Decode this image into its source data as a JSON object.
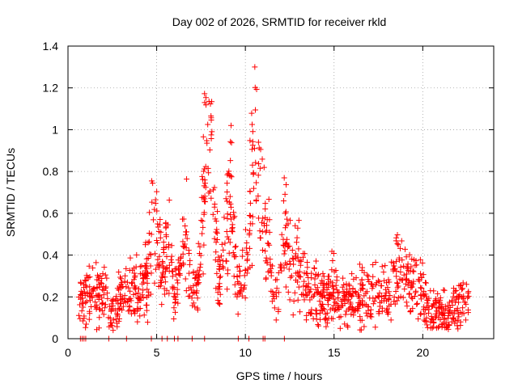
{
  "chart_data": {
    "type": "scatter",
    "title": "Day 002 of 2026, SRMTID for receiver rkld",
    "xlabel": "GPS time / hours",
    "ylabel": "SRMTID / TECUs",
    "xlim": [
      0,
      24
    ],
    "ylim": [
      0,
      1.4
    ],
    "x_ticks": [
      "0",
      "5",
      "10",
      "15",
      "20"
    ],
    "y_ticks": [
      "0",
      "0.2",
      "0.4",
      "0.6",
      "0.8",
      "1",
      "1.2",
      "1.4"
    ],
    "grid": true,
    "marker": "+",
    "series": [
      {
        "name": "SRMTID",
        "color": "#ff0000",
        "profile": [
          [
            0.6,
            0.17
          ],
          [
            1.0,
            0.18
          ],
          [
            1.3,
            0.22
          ],
          [
            1.6,
            0.2
          ],
          [
            2.0,
            0.24
          ],
          [
            2.3,
            0.1
          ],
          [
            2.7,
            0.16
          ],
          [
            3.0,
            0.2
          ],
          [
            3.5,
            0.23
          ],
          [
            4.0,
            0.25
          ],
          [
            4.5,
            0.3
          ],
          [
            4.8,
            0.6
          ],
          [
            5.0,
            0.5
          ],
          [
            5.3,
            0.3
          ],
          [
            5.7,
            0.45
          ],
          [
            6.0,
            0.2
          ],
          [
            6.4,
            0.4
          ],
          [
            6.7,
            0.5
          ],
          [
            7.0,
            0.25
          ],
          [
            7.3,
            0.2
          ],
          [
            7.7,
            0.8
          ],
          [
            8.0,
            1.0
          ],
          [
            8.3,
            0.5
          ],
          [
            8.6,
            0.25
          ],
          [
            8.9,
            0.5
          ],
          [
            9.2,
            0.75
          ],
          [
            9.5,
            0.3
          ],
          [
            9.8,
            0.2
          ],
          [
            10.2,
            0.55
          ],
          [
            10.5,
            1.0
          ],
          [
            10.8,
            0.7
          ],
          [
            11.2,
            0.5
          ],
          [
            11.5,
            0.25
          ],
          [
            11.9,
            0.2
          ],
          [
            12.2,
            0.5
          ],
          [
            12.6,
            0.3
          ],
          [
            13.0,
            0.35
          ],
          [
            13.5,
            0.25
          ],
          [
            14.0,
            0.2
          ],
          [
            14.5,
            0.2
          ],
          [
            15.0,
            0.25
          ],
          [
            15.3,
            0.15
          ],
          [
            16.0,
            0.18
          ],
          [
            16.5,
            0.2
          ],
          [
            17.0,
            0.22
          ],
          [
            17.5,
            0.2
          ],
          [
            18.0,
            0.22
          ],
          [
            18.5,
            0.3
          ],
          [
            19.0,
            0.28
          ],
          [
            19.5,
            0.25
          ],
          [
            20.0,
            0.22
          ],
          [
            20.5,
            0.13
          ],
          [
            21.0,
            0.12
          ],
          [
            21.5,
            0.12
          ],
          [
            22.0,
            0.15
          ],
          [
            22.6,
            0.22
          ]
        ],
        "zero_points": [
          0.7,
          0.8,
          0.9,
          1.0,
          2.3,
          3.3,
          4.7,
          5.3,
          5.6,
          6.0,
          6.2,
          7.0,
          7.7,
          9.6,
          10.2,
          11.0,
          11.1,
          12.2
        ]
      }
    ]
  }
}
